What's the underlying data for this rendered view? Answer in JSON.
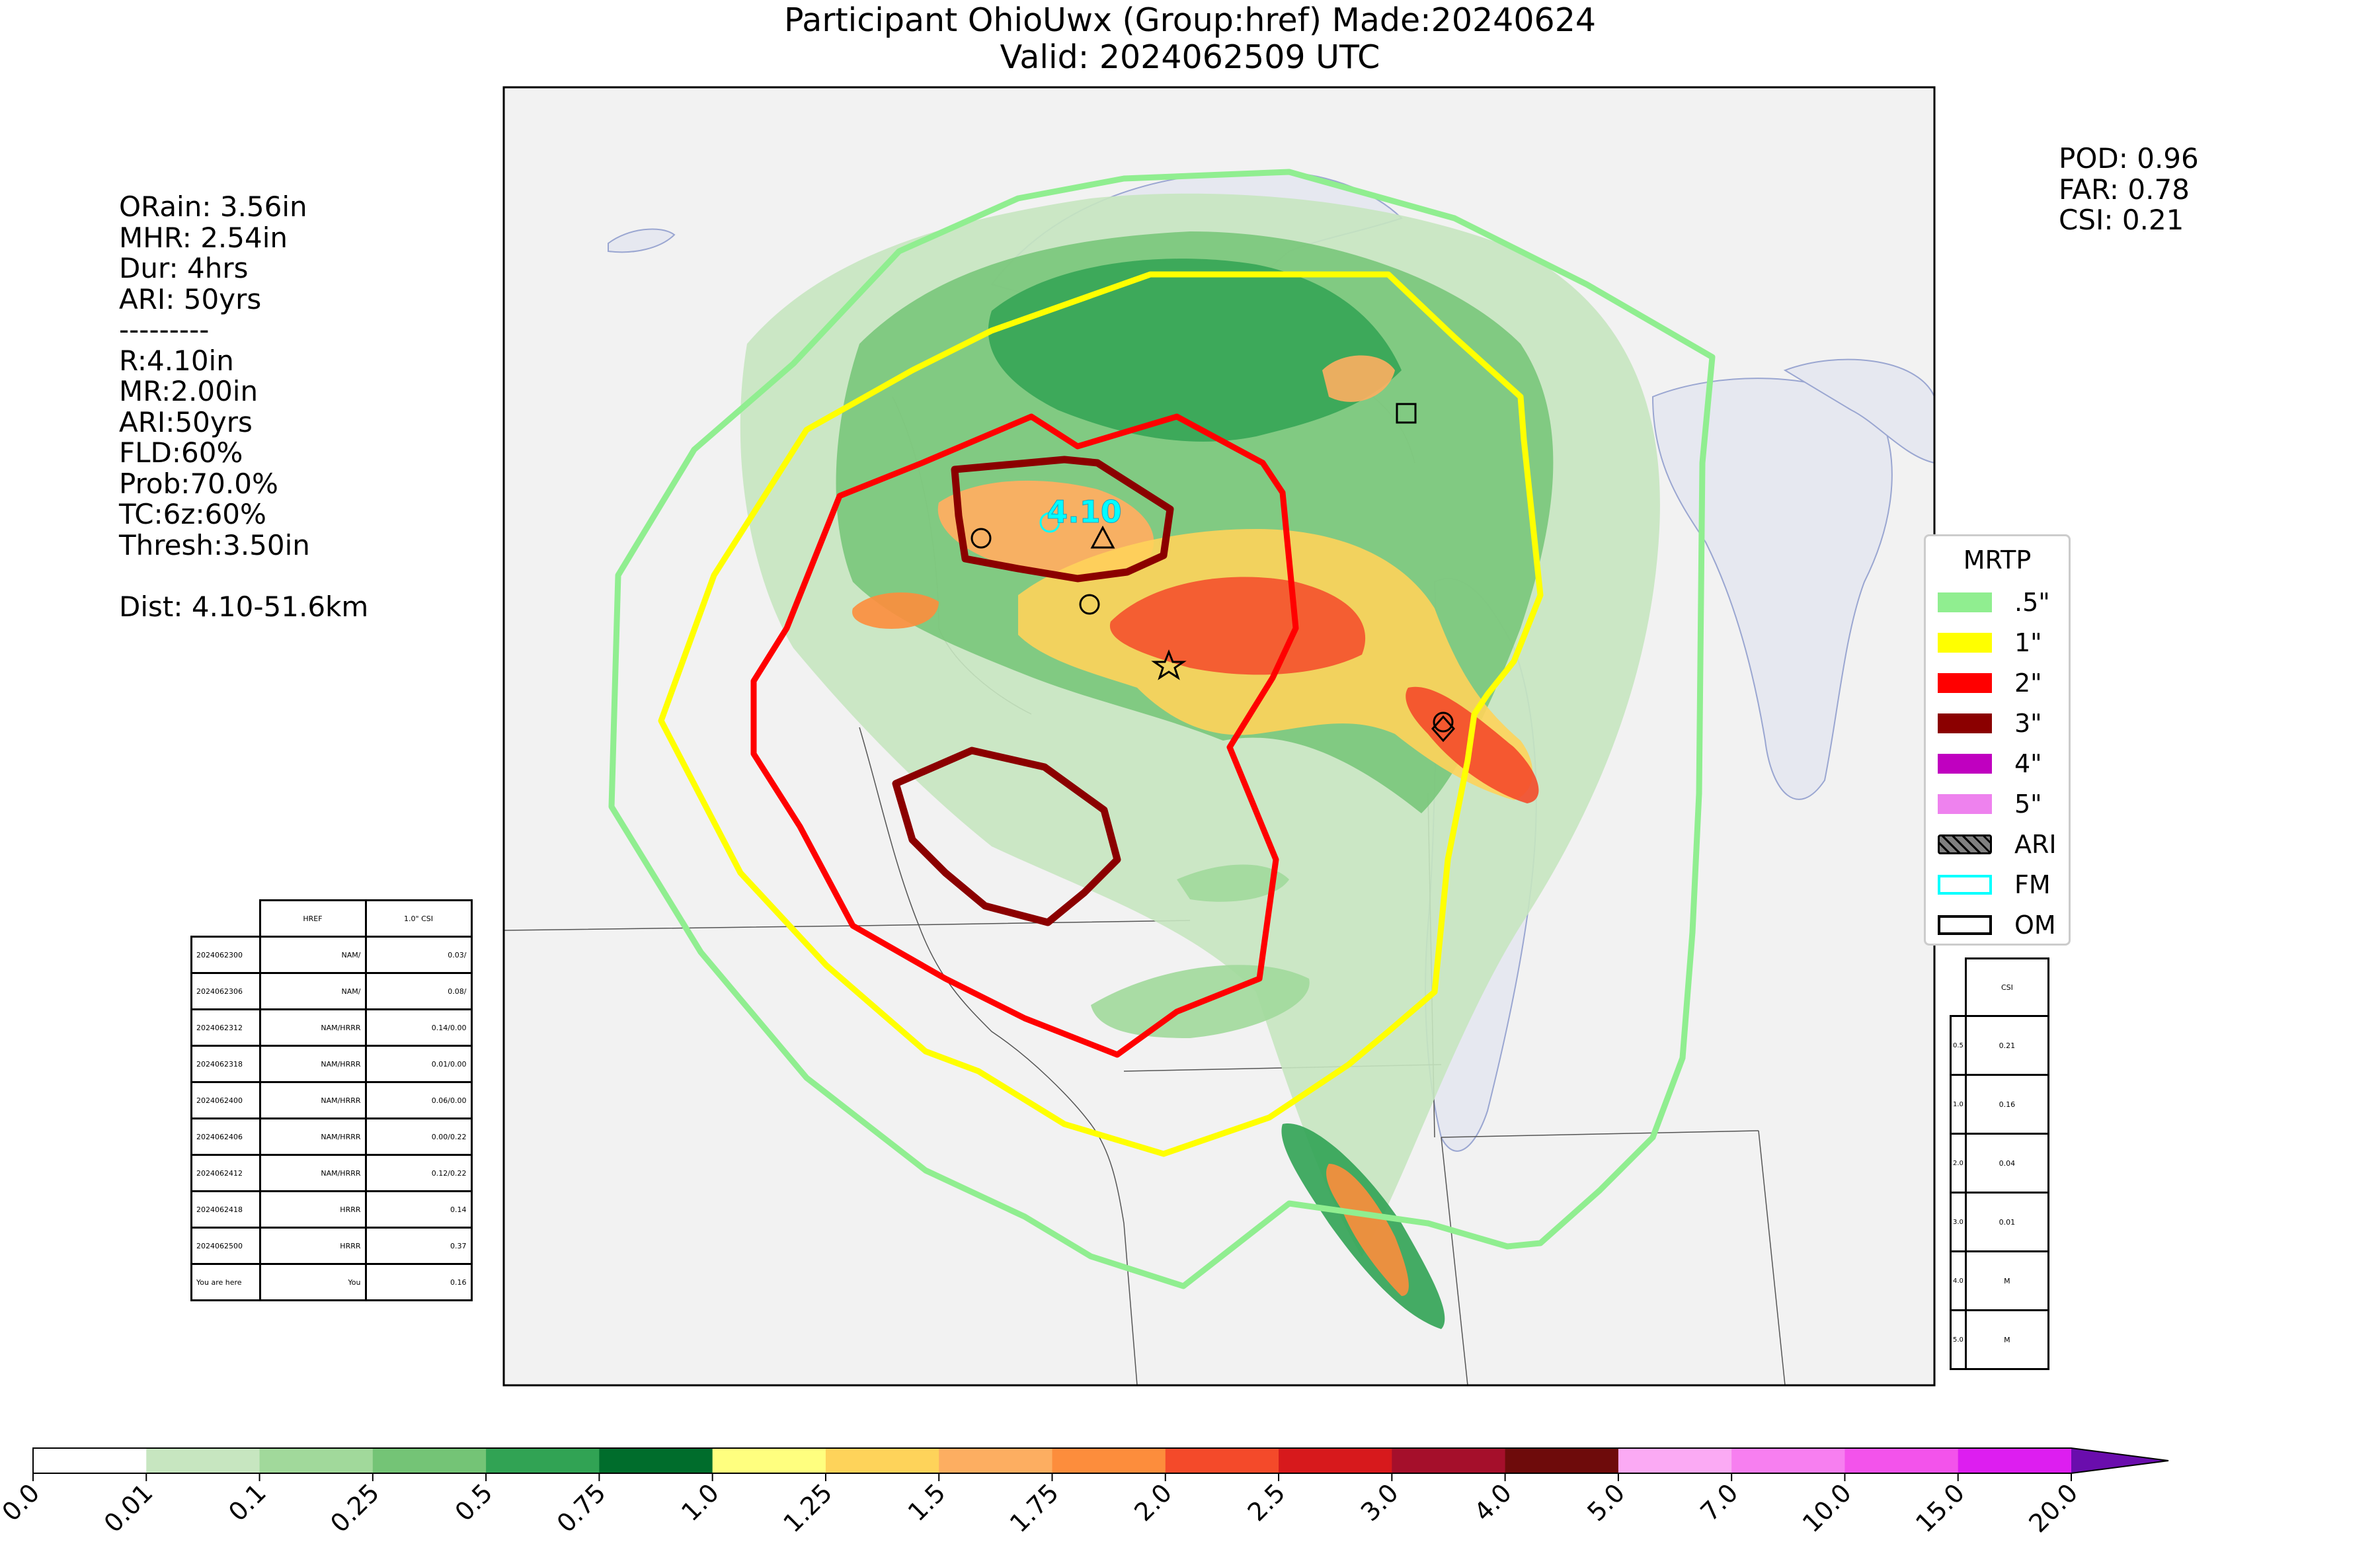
{
  "title": {
    "line1": "Participant OhioUwx (Group:href) Made:20240624",
    "line2": "Valid: 2024062509 UTC"
  },
  "stats_left": [
    "ORain: 3.56in",
    "MHR: 2.54in",
    "Dur: 4hrs",
    "ARI: 50yrs",
    "---------",
    "R:4.10in",
    "MR:2.00in",
    "ARI:50yrs",
    "FLD:60%",
    "Prob:70.0%",
    "TC:6z:60%",
    "Thresh:3.50in",
    "",
    "Dist: 4.10-51.6km"
  ],
  "stats_right": [
    "POD: 0.96",
    "FAR: 0.78",
    "CSI: 0.21"
  ],
  "history_table": {
    "headers": [
      "HREF",
      "1.0\" CSI"
    ],
    "rows": [
      {
        "time": "2024062300",
        "model": "NAM/",
        "csi": "0.03/"
      },
      {
        "time": "2024062306",
        "model": "NAM/",
        "csi": "0.08/"
      },
      {
        "time": "2024062312",
        "model": "NAM/HRRR",
        "csi": "0.14/0.00"
      },
      {
        "time": "2024062318",
        "model": "NAM/HRRR",
        "csi": "0.01/0.00"
      },
      {
        "time": "2024062400",
        "model": "NAM/HRRR",
        "csi": "0.06/0.00"
      },
      {
        "time": "2024062406",
        "model": "NAM/HRRR",
        "csi": "0.00/0.22"
      },
      {
        "time": "2024062412",
        "model": "NAM/HRRR",
        "csi": "0.12/0.22"
      },
      {
        "time": "2024062418",
        "model": "HRRR",
        "csi": "0.14"
      },
      {
        "time": "2024062500",
        "model": "HRRR",
        "csi": "0.37"
      },
      {
        "time": "You are here",
        "model": "You",
        "csi": "0.16"
      }
    ]
  },
  "csi_table": {
    "header": "CSI",
    "rows": [
      {
        "thr": "0.5",
        "csi": "0.21"
      },
      {
        "thr": "1.0",
        "csi": "0.16"
      },
      {
        "thr": "2.0",
        "csi": "0.04"
      },
      {
        "thr": "3.0",
        "csi": "0.01"
      },
      {
        "thr": "4.0",
        "csi": "M"
      },
      {
        "thr": "5.0",
        "csi": "M"
      }
    ]
  },
  "legend": {
    "title": "MRTP",
    "items": [
      {
        "label": ".5\"",
        "color": "#90ee90",
        "style": "fill"
      },
      {
        "label": "1\"",
        "color": "#ffff00",
        "style": "fill"
      },
      {
        "label": "2\"",
        "color": "#ff0000",
        "style": "fill"
      },
      {
        "label": "3\"",
        "color": "#8b0000",
        "style": "fill"
      },
      {
        "label": "4\"",
        "color": "#c000c0",
        "style": "fill"
      },
      {
        "label": "5\"",
        "color": "#ee82ee",
        "style": "fill"
      },
      {
        "label": "ARI",
        "color": "#808080",
        "style": "hatch"
      },
      {
        "label": "FM",
        "color": "#00ffff",
        "style": "outline"
      },
      {
        "label": "OM",
        "color": "#000000",
        "style": "outline"
      }
    ]
  },
  "map_annotation": "4.10",
  "colorbar": {
    "ticks": [
      "0.0",
      "0.01",
      "0.1",
      "0.25",
      "0.5",
      "0.75",
      "1.0",
      "1.25",
      "1.5",
      "1.75",
      "2.0",
      "2.5",
      "3.0",
      "4.0",
      "5.0",
      "7.0",
      "10.0",
      "15.0",
      "20.0"
    ],
    "colors": [
      "#ffffff",
      "#c7e6c0",
      "#a1d99b",
      "#74c476",
      "#31a354",
      "#006d2c",
      "#ffff7f",
      "#fed35a",
      "#fdae61",
      "#fd8d3c",
      "#f44a2a",
      "#d7191c",
      "#a50f2b",
      "#6e0b0b",
      "#fbaaf4",
      "#f77ff0",
      "#f353eb",
      "#dd1ef0",
      "#9313c6"
    ],
    "extend_color": "#6a0dad"
  },
  "contour_colors": {
    "c05": "#90ee90",
    "c1": "#ffff00",
    "c2": "#ff0000",
    "c3": "#8b0000",
    "fm": "#00ffff"
  }
}
